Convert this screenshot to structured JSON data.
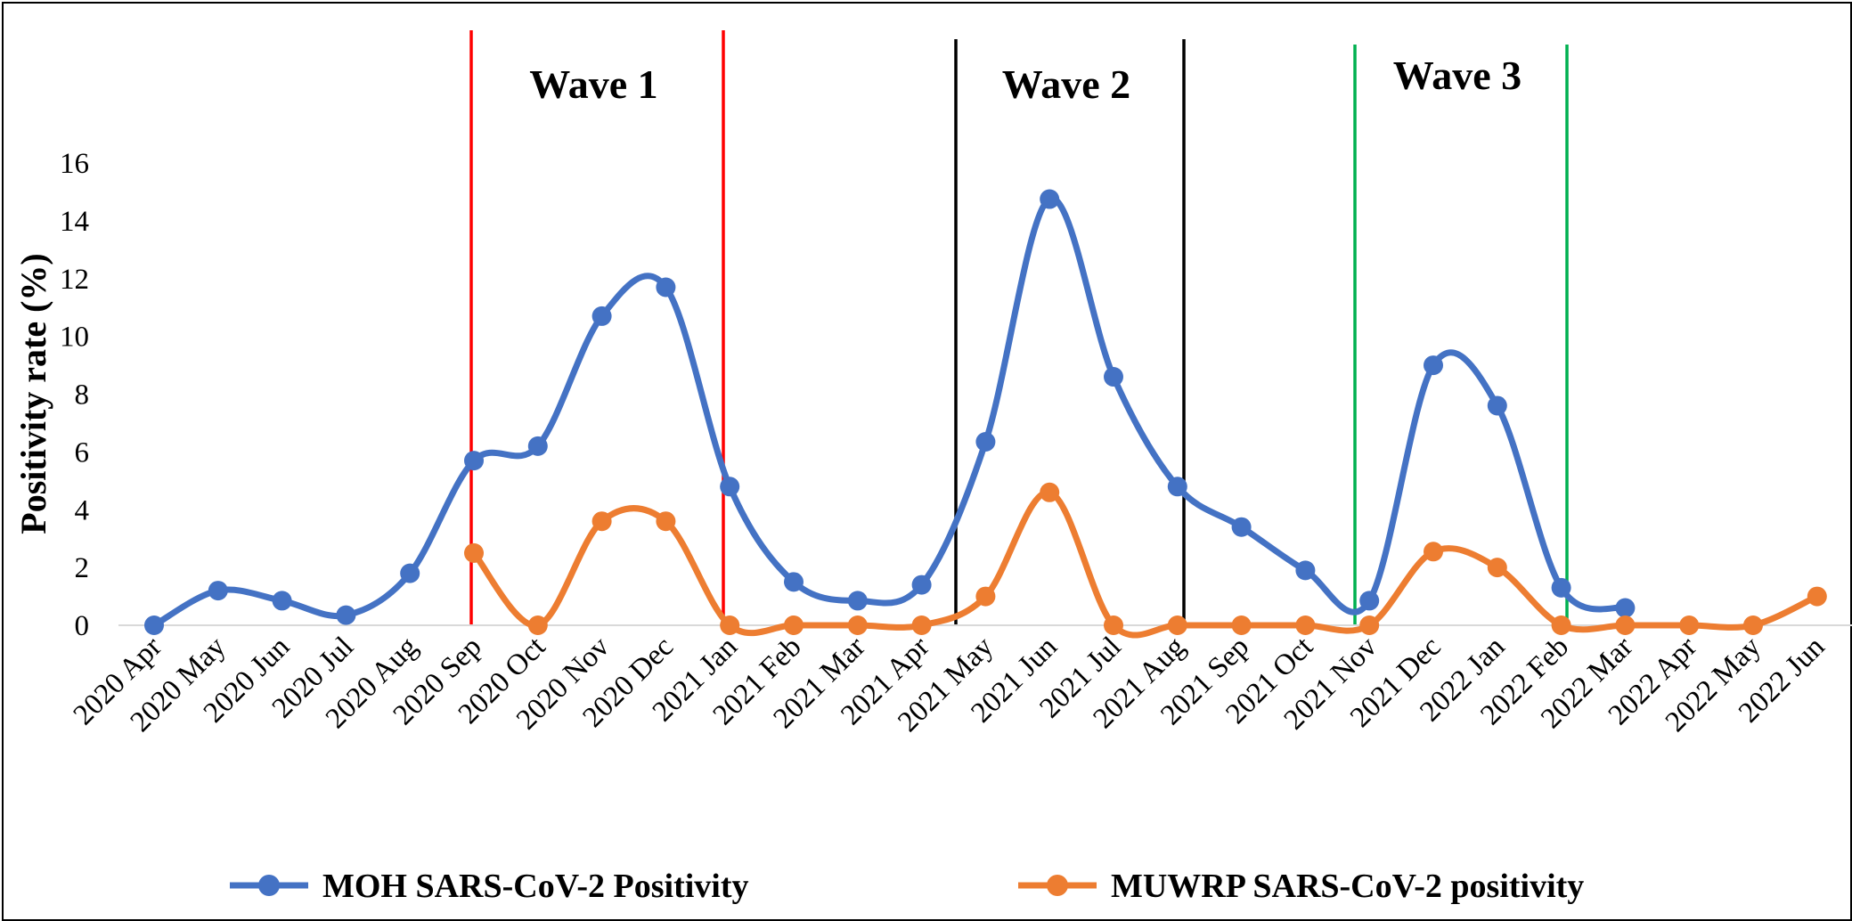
{
  "chart_data": {
    "type": "line",
    "smooth": true,
    "title": "",
    "xlabel": "",
    "ylabel": "Positivity rate (%)",
    "ylim": [
      0,
      16
    ],
    "yticks": [
      0,
      2,
      4,
      6,
      8,
      10,
      12,
      14,
      16
    ],
    "grid": false,
    "legend_position": "bottom",
    "categories": [
      "2020 Apr",
      "2020 May",
      "2020 Jun",
      "2020 Jul",
      "2020 Aug",
      "2020 Sep",
      "2020 Oct",
      "2020 Nov",
      "2020 Dec",
      "2021 Jan",
      "2021 Feb",
      "2021 Mar",
      "2021 Apr",
      "2021 May",
      "2021 Jun",
      "2021 Jul",
      "2021 Aug",
      "2021 Sep",
      "2021 Oct",
      "2021 Nov",
      "2021 Dec",
      "2022 Jan",
      "2022 Feb",
      "2022 Mar",
      "2022 Apr",
      "2022 May",
      "2022 Jun"
    ],
    "series": [
      {
        "name": "MOH SARS-CoV-2 Positivity",
        "color": "#4472C4",
        "values": [
          0,
          1.2,
          0.85,
          0.35,
          1.8,
          5.7,
          6.2,
          10.7,
          11.7,
          4.8,
          1.5,
          0.85,
          1.4,
          6.35,
          14.75,
          8.6,
          4.8,
          3.4,
          1.9,
          0.85,
          9.0,
          7.6,
          1.3,
          0.6,
          null,
          null,
          null
        ]
      },
      {
        "name": "MUWRP SARS-CoV-2 positivity",
        "color": "#ED7D31",
        "values": [
          null,
          null,
          null,
          null,
          null,
          2.5,
          0,
          3.6,
          3.6,
          0,
          0,
          0,
          0,
          1.0,
          4.6,
          0,
          0,
          0,
          0,
          0,
          2.55,
          2.0,
          0,
          0,
          0,
          0,
          1.0
        ]
      }
    ],
    "annotations": [
      {
        "label": "Wave 1",
        "from": "2020 Sep",
        "to": "2021 Jan",
        "color": "#FF0000"
      },
      {
        "label": "Wave 2",
        "from": "2021 May",
        "to": "2021 Aug",
        "color": "#000000"
      },
      {
        "label": "Wave 3",
        "from": "2021 Nov",
        "to": "2022 Feb",
        "color": "#00B050"
      }
    ]
  }
}
